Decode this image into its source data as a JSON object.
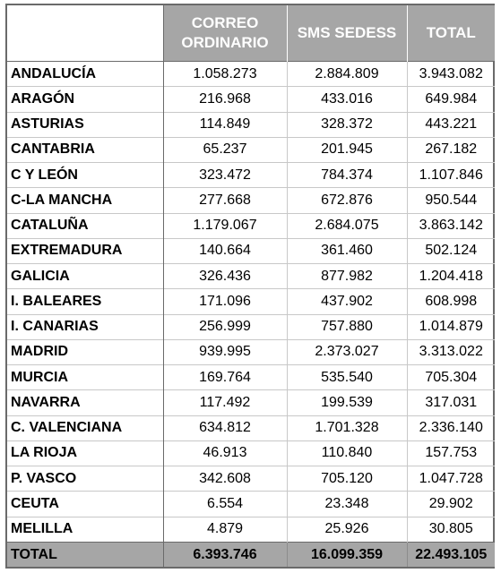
{
  "headers": {
    "region": "",
    "correo_line1": "CORREO",
    "correo_line2": "ORDINARIO",
    "sms": "SMS SEDESS",
    "total": "TOTAL"
  },
  "rows": [
    {
      "region": "ANDALUCÍA",
      "correo": "1.058.273",
      "sms": "2.884.809",
      "total": "3.943.082"
    },
    {
      "region": "ARAGÓN",
      "correo": "216.968",
      "sms": "433.016",
      "total": "649.984"
    },
    {
      "region": "ASTURIAS",
      "correo": "114.849",
      "sms": "328.372",
      "total": "443.221"
    },
    {
      "region": "CANTABRIA",
      "correo": "65.237",
      "sms": "201.945",
      "total": "267.182"
    },
    {
      "region": "C Y LEÓN",
      "correo": "323.472",
      "sms": "784.374",
      "total": "1.107.846"
    },
    {
      "region": "C-LA MANCHA",
      "correo": "277.668",
      "sms": "672.876",
      "total": "950.544"
    },
    {
      "region": "CATALUÑA",
      "correo": "1.179.067",
      "sms": "2.684.075",
      "total": "3.863.142"
    },
    {
      "region": "EXTREMADURA",
      "correo": "140.664",
      "sms": "361.460",
      "total": "502.124"
    },
    {
      "region": "GALICIA",
      "correo": "326.436",
      "sms": "877.982",
      "total": "1.204.418"
    },
    {
      "region": "I. BALEARES",
      "correo": "171.096",
      "sms": "437.902",
      "total": "608.998"
    },
    {
      "region": "I. CANARIAS",
      "correo": "256.999",
      "sms": "757.880",
      "total": "1.014.879"
    },
    {
      "region": "MADRID",
      "correo": "939.995",
      "sms": "2.373.027",
      "total": "3.313.022"
    },
    {
      "region": "MURCIA",
      "correo": "169.764",
      "sms": "535.540",
      "total": "705.304"
    },
    {
      "region": "NAVARRA",
      "correo": "117.492",
      "sms": "199.539",
      "total": "317.031"
    },
    {
      "region": "C. VALENCIANA",
      "correo": "634.812",
      "sms": "1.701.328",
      "total": "2.336.140"
    },
    {
      "region": "LA RIOJA",
      "correo": "46.913",
      "sms": "110.840",
      "total": "157.753"
    },
    {
      "region": "P. VASCO",
      "correo": "342.608",
      "sms": "705.120",
      "total": "1.047.728"
    },
    {
      "region": "CEUTA",
      "correo": "6.554",
      "sms": "23.348",
      "total": "29.902"
    },
    {
      "region": "MELILLA",
      "correo": "4.879",
      "sms": "25.926",
      "total": "30.805"
    }
  ],
  "totals": {
    "label": "TOTAL",
    "correo": "6.393.746",
    "sms": "16.099.359",
    "total": "22.493.105"
  },
  "colors": {
    "header_bg": "#a6a6a6",
    "header_text": "#ffffff",
    "border": "#6a6a6a"
  }
}
